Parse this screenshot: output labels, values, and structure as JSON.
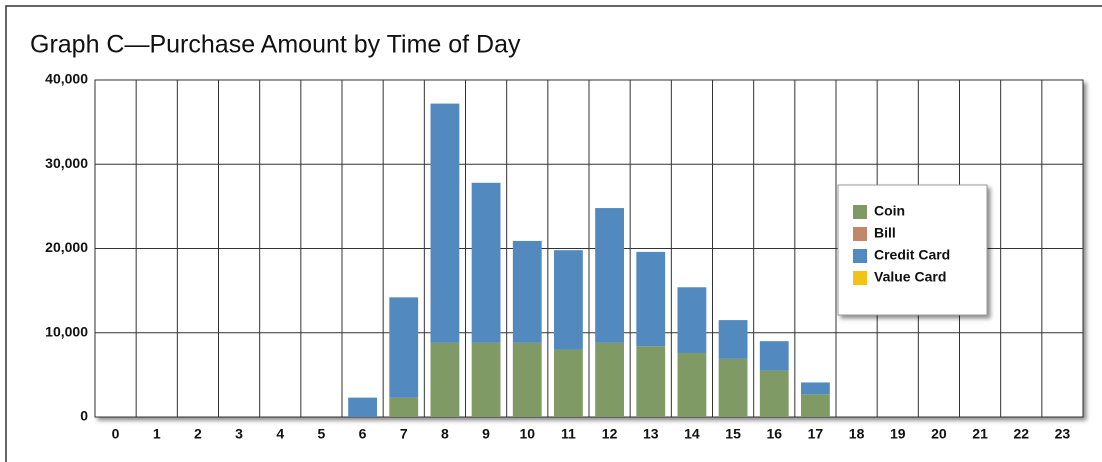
{
  "chart_data": {
    "type": "stacked_bar",
    "title": "Graph C—Purchase Amount by Time of Day",
    "categories": [
      "0",
      "1",
      "2",
      "3",
      "4",
      "5",
      "6",
      "7",
      "8",
      "9",
      "10",
      "11",
      "12",
      "13",
      "14",
      "15",
      "16",
      "17",
      "18",
      "19",
      "20",
      "21",
      "22",
      "23"
    ],
    "series": [
      {
        "name": "Coin",
        "color": "#7f9a65",
        "values": [
          0,
          0,
          0,
          0,
          0,
          0,
          0,
          2300,
          8800,
          8800,
          8800,
          8000,
          8800,
          8400,
          7600,
          6900,
          5500,
          2700,
          0,
          0,
          0,
          0,
          0,
          0
        ]
      },
      {
        "name": "Bill",
        "color": "#c0876b",
        "values": [
          0,
          0,
          0,
          0,
          0,
          0,
          0,
          0,
          0,
          0,
          0,
          0,
          0,
          0,
          0,
          0,
          0,
          0,
          0,
          0,
          0,
          0,
          0,
          0
        ]
      },
      {
        "name": "Credit Card",
        "color": "#5289be",
        "values": [
          0,
          0,
          0,
          0,
          0,
          0,
          2300,
          11900,
          28400,
          19000,
          12100,
          11800,
          16000,
          11200,
          7800,
          4600,
          3500,
          1400,
          0,
          0,
          0,
          0,
          0,
          0
        ]
      },
      {
        "name": "Value Card",
        "color": "#f2c314",
        "values": [
          0,
          0,
          0,
          0,
          0,
          0,
          0,
          0,
          0,
          0,
          0,
          0,
          0,
          0,
          0,
          0,
          0,
          0,
          0,
          0,
          0,
          0,
          0,
          0
        ]
      }
    ],
    "ylim": [
      0,
      40000
    ],
    "yticks": [
      0,
      {
        "value": 10000,
        "label": "10,000"
      },
      {
        "value": 20000,
        "label": "20,000"
      },
      {
        "value": 30000,
        "label": "30,000"
      },
      {
        "value": 40000,
        "label": "40,000"
      }
    ],
    "grid": true,
    "legend": "right"
  }
}
